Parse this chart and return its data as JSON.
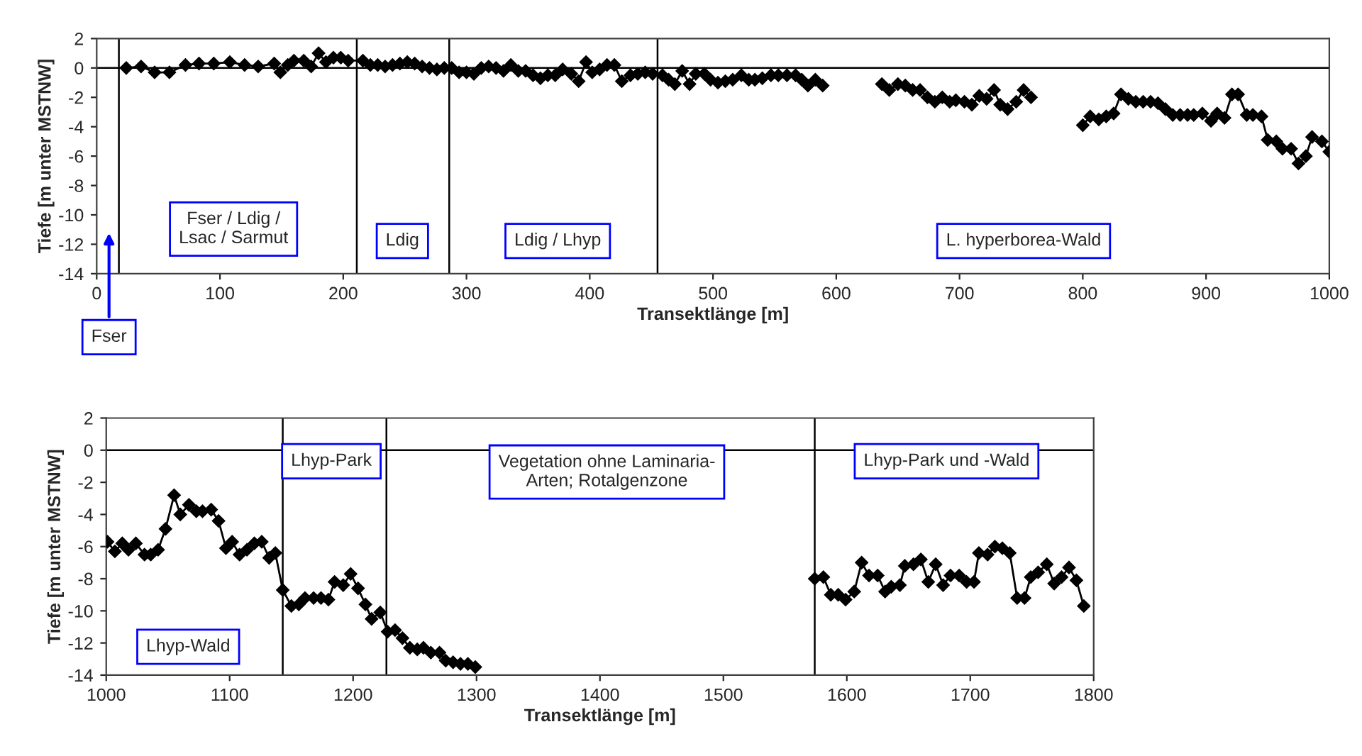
{
  "chart_data": [
    {
      "type": "line",
      "xlabel": "Transektlänge [m]",
      "ylabel": "Tiefe [m unter MSTNW]",
      "marker": "diamond",
      "line_style": "solid",
      "grid": false,
      "xlim": [
        0,
        1000
      ],
      "xticks": [
        0,
        100,
        200,
        300,
        400,
        500,
        600,
        700,
        800,
        900,
        1000
      ],
      "ylim": [
        -14,
        2
      ],
      "yticks": [
        -14,
        -12,
        -10,
        -8,
        -6,
        -4,
        -2,
        0,
        2
      ],
      "series": [
        {
          "color": "#000000",
          "x": [
            24,
            36,
            47,
            59,
            72,
            83,
            95,
            108,
            120,
            131,
            144,
            149,
            155,
            160,
            168,
            174,
            180,
            186,
            192,
            198,
            204,
            216,
            222,
            228,
            234,
            240,
            246,
            252,
            258,
            264,
            270,
            276,
            282,
            288,
            294,
            300,
            306,
            312,
            318,
            324,
            330,
            336,
            342,
            348,
            354,
            360,
            366,
            372,
            378,
            385,
            391,
            397,
            402,
            408,
            414,
            420,
            426,
            433,
            439,
            445,
            451,
            459,
            464,
            469,
            475,
            481,
            486,
            493,
            498,
            504,
            510,
            516,
            523,
            529,
            534,
            540,
            547,
            553,
            560,
            567,
            572,
            577,
            583,
            589,
            613,
            637,
            643,
            650,
            656,
            662,
            668,
            674,
            680,
            686,
            692,
            697,
            704,
            710,
            716,
            722,
            728,
            733,
            739,
            746,
            752,
            758,
            779,
            800,
            806,
            813,
            819,
            825,
            831,
            837,
            843,
            849,
            855,
            861,
            867,
            873,
            879,
            885,
            890,
            897,
            904,
            909,
            915,
            921,
            926,
            933,
            938,
            945,
            950,
            957,
            962,
            969,
            975,
            981,
            986,
            994,
            1000
          ],
          "values": [
            0,
            0.1,
            -0.3,
            -0.3,
            0.2,
            0.3,
            0.3,
            0.4,
            0.2,
            0.1,
            0.3,
            -0.3,
            0.2,
            0.5,
            0.5,
            0.1,
            1.0,
            0.4,
            0.7,
            0.7,
            0.5,
            0.5,
            0.2,
            0.2,
            0.1,
            0.2,
            0.3,
            0.4,
            0.3,
            0.1,
            0,
            -0.1,
            0,
            0,
            -0.3,
            -0.3,
            -0.4,
            0,
            0.1,
            0,
            -0.2,
            0.2,
            -0.2,
            -0.2,
            -0.5,
            -0.7,
            -0.5,
            -0.5,
            -0.1,
            -0.4,
            -0.9,
            0.4,
            -0.3,
            -0.1,
            0.2,
            0.2,
            -0.9,
            -0.5,
            -0.4,
            -0.3,
            -0.4,
            -0.5,
            -0.8,
            -1.1,
            -0.2,
            -1.1,
            -0.4,
            -0.4,
            -0.8,
            -1.0,
            -0.9,
            -0.8,
            -0.5,
            -0.8,
            -0.8,
            -0.7,
            -0.5,
            -0.5,
            -0.5,
            -0.5,
            -0.8,
            -1.2,
            -0.8,
            -1.2,
            null,
            -1.1,
            -1.5,
            -1.1,
            -1.2,
            -1.5,
            -1.5,
            -2.0,
            -2.3,
            -2.0,
            -2.3,
            -2.2,
            -2.3,
            -2.5,
            -1.9,
            -2.1,
            -1.5,
            -2.5,
            -2.8,
            -2.3,
            -1.5,
            -2.0,
            null,
            -3.9,
            -3.3,
            -3.5,
            -3.3,
            -3.1,
            -1.8,
            -2.1,
            -2.3,
            -2.3,
            -2.3,
            -2.4,
            -2.8,
            -3.2,
            -3.2,
            -3.2,
            -3.2,
            -3.1,
            -3.6,
            -3.1,
            -3.4,
            -1.8,
            -1.8,
            -3.2,
            -3.2,
            -3.3,
            -4.9,
            -5.0,
            -5.5,
            -5.5,
            -6.5,
            -6.0,
            -4.7,
            -5.0,
            -5.7
          ]
        }
      ],
      "ref_lines": [
        {
          "axis": "y",
          "value": 0,
          "color": "#000000"
        },
        {
          "axis": "x",
          "value": 18,
          "color": "#000000"
        },
        {
          "axis": "x",
          "value": 211,
          "color": "#000000"
        },
        {
          "axis": "x",
          "value": 286,
          "color": "#000000"
        },
        {
          "axis": "x",
          "value": 455,
          "color": "#000000"
        }
      ],
      "annotations": [
        "Fser / Ldig /\nLsac / Sarmut",
        "Ldig",
        "Ldig / Lhyp",
        "L. hyperborea-Wald",
        "Fser"
      ]
    },
    {
      "type": "line",
      "xlabel": "Transektlänge [m]",
      "ylabel": "Tiefe [m unter MSTNW]",
      "marker": "diamond",
      "line_style": "solid",
      "grid": false,
      "xlim": [
        1000,
        1800
      ],
      "xticks": [
        1000,
        1100,
        1200,
        1300,
        1400,
        1500,
        1600,
        1700,
        1800
      ],
      "ylim": [
        -14,
        2
      ],
      "yticks": [
        -14,
        -12,
        -10,
        -8,
        -6,
        -4,
        -2,
        0,
        2
      ],
      "series": [
        {
          "color": "#000000",
          "x": [
            1001,
            1007,
            1013,
            1018,
            1024,
            1031,
            1036,
            1042,
            1048,
            1055,
            1060,
            1067,
            1073,
            1078,
            1085,
            1091,
            1097,
            1102,
            1108,
            1114,
            1120,
            1126,
            1132,
            1137,
            1143,
            1150,
            1156,
            1161,
            1168,
            1174,
            1180,
            1185,
            1192,
            1198,
            1204,
            1210,
            1215,
            1222,
            1228,
            1234,
            1240,
            1246,
            1252,
            1257,
            1263,
            1270,
            1275,
            1281,
            1287,
            1293,
            1299,
            1440,
            1574,
            1581,
            1587,
            1593,
            1599,
            1606,
            1612,
            1618,
            1625,
            1631,
            1636,
            1643,
            1647,
            1654,
            1660,
            1666,
            1672,
            1678,
            1684,
            1691,
            1697,
            1703,
            1707,
            1714,
            1720,
            1726,
            1732,
            1738,
            1744,
            1749,
            1755,
            1762,
            1768,
            1774,
            1780,
            1786,
            1792
          ],
          "values": [
            -5.7,
            -6.3,
            -5.8,
            -6.2,
            -5.8,
            -6.5,
            -6.5,
            -6.2,
            -4.9,
            -2.8,
            -4.0,
            -3.4,
            -3.8,
            -3.8,
            -3.7,
            -4.4,
            -6.1,
            -5.7,
            -6.5,
            -6.2,
            -5.8,
            -5.7,
            -6.7,
            -6.4,
            -8.7,
            -9.7,
            -9.6,
            -9.2,
            -9.2,
            -9.2,
            -9.3,
            -8.2,
            -8.4,
            -7.7,
            -8.6,
            -9.6,
            -10.5,
            -10.1,
            -11.3,
            -11.2,
            -11.7,
            -12.3,
            -12.4,
            -12.3,
            -12.6,
            -12.6,
            -13.1,
            -13.2,
            -13.3,
            -13.3,
            -13.5,
            null,
            -8.0,
            -7.9,
            -9.0,
            -9.0,
            -9.3,
            -8.8,
            -7.0,
            -7.8,
            -7.8,
            -8.8,
            -8.5,
            -8.4,
            -7.2,
            -7.1,
            -6.8,
            -8.2,
            -7.1,
            -8.4,
            -7.8,
            -7.8,
            -8.2,
            -8.2,
            -6.4,
            -6.5,
            -6.0,
            -6.1,
            -6.4,
            -9.2,
            -9.2,
            -7.9,
            -7.6,
            -7.1,
            -8.3,
            -7.9,
            -7.3,
            -8.1,
            -9.7
          ]
        }
      ],
      "ref_lines": [
        {
          "axis": "y",
          "value": 0,
          "color": "#000000"
        },
        {
          "axis": "x",
          "value": 1143,
          "color": "#000000"
        },
        {
          "axis": "x",
          "value": 1227,
          "color": "#000000"
        },
        {
          "axis": "x",
          "value": 1574,
          "color": "#000000"
        }
      ],
      "annotations": [
        "Lhyp-Wald",
        "Lhyp-Park",
        "Vegetation ohne Laminaria-\nArten; Rotalgenzone",
        "Lhyp-Park und -Wald"
      ]
    }
  ]
}
